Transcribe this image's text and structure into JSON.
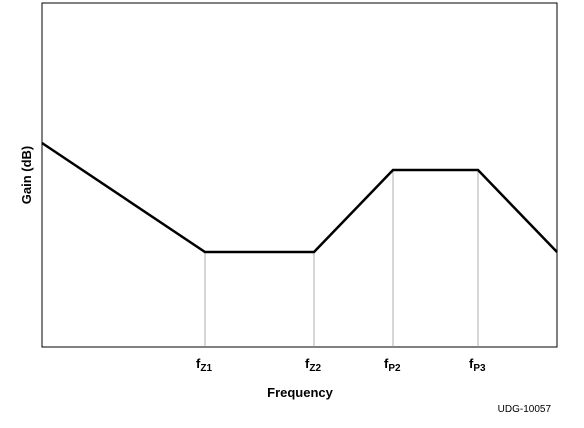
{
  "figure": {
    "ylabel": "Gain (dB)",
    "xlabel": "Frequency",
    "reference_id": "UDG-10057"
  },
  "chart_data": {
    "type": "line",
    "xlabel": "Frequency",
    "ylabel": "Gain (dB)",
    "x_scale": "log (unlabeled)",
    "y_scale": "linear (unlabeled)",
    "grid": false,
    "legend": "none",
    "markers": [
      {
        "main": "f",
        "sub": "Z1"
      },
      {
        "main": "f",
        "sub": "Z2"
      },
      {
        "main": "f",
        "sub": "P2"
      },
      {
        "main": "f",
        "sub": "P3"
      }
    ],
    "series": [
      {
        "color": "#000000",
        "segments": [
          {
            "from": "start",
            "to": "fZ1",
            "slope": "falling"
          },
          {
            "from": "fZ1",
            "to": "fZ2",
            "slope": "flat"
          },
          {
            "from": "fZ2",
            "to": "fP2",
            "slope": "rising"
          },
          {
            "from": "fP2",
            "to": "fP3",
            "slope": "flat"
          },
          {
            "from": "fP3",
            "to": "end",
            "slope": "falling"
          }
        ]
      }
    ]
  }
}
